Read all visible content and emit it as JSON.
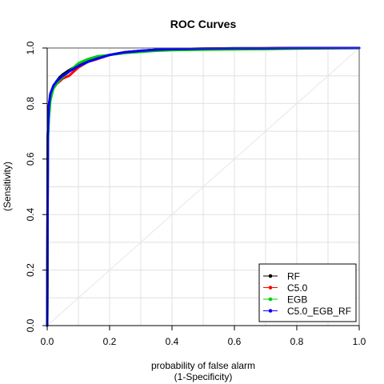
{
  "chart_data": {
    "type": "line",
    "title": "ROC Curves",
    "xlabel_line1": "probability of false alarm",
    "xlabel_line2": "(1-Specificity)",
    "ylabel_line1": "",
    "ylabel_line2": "(Sensitivity)",
    "xlim": [
      0,
      1
    ],
    "ylim": [
      0,
      1
    ],
    "x_ticks": [
      "0.0",
      "0.2",
      "0.4",
      "0.6",
      "0.8",
      "1.0"
    ],
    "y_ticks": [
      "0.0",
      "0.2",
      "0.4",
      "0.6",
      "0.8",
      "1.0"
    ],
    "grid": true,
    "diagonal": true,
    "legend_position": "bottom-right",
    "series": [
      {
        "name": "RF",
        "color": "#000000",
        "x": [
          0,
          0.002,
          0.005,
          0.01,
          0.02,
          0.03,
          0.04,
          0.05,
          0.07,
          0.1,
          0.13,
          0.16,
          0.2,
          0.25,
          0.3,
          0.35,
          0.4,
          0.5,
          0.6,
          0.7,
          0.8,
          0.9,
          1.0
        ],
        "y": [
          0,
          0.68,
          0.78,
          0.83,
          0.86,
          0.88,
          0.895,
          0.905,
          0.92,
          0.94,
          0.955,
          0.965,
          0.975,
          0.985,
          0.99,
          0.994,
          0.996,
          0.998,
          0.999,
          0.999,
          1.0,
          1.0,
          1.0
        ]
      },
      {
        "name": "C5.0",
        "color": "#ff0000",
        "x": [
          0,
          0.002,
          0.005,
          0.01,
          0.02,
          0.03,
          0.04,
          0.05,
          0.07,
          0.1,
          0.13,
          0.16,
          0.2,
          0.25,
          0.3,
          0.35,
          0.4,
          0.5,
          0.6,
          0.7,
          0.8,
          0.9,
          1.0
        ],
        "y": [
          0,
          0.67,
          0.77,
          0.82,
          0.855,
          0.87,
          0.88,
          0.89,
          0.9,
          0.93,
          0.95,
          0.96,
          0.975,
          0.985,
          0.99,
          0.994,
          0.996,
          0.997,
          0.998,
          0.999,
          1.0,
          1.0,
          1.0
        ]
      },
      {
        "name": "EGB",
        "color": "#00cd00",
        "x": [
          0,
          0.002,
          0.005,
          0.01,
          0.02,
          0.03,
          0.04,
          0.05,
          0.07,
          0.1,
          0.13,
          0.16,
          0.2,
          0.25,
          0.3,
          0.35,
          0.4,
          0.5,
          0.6,
          0.7,
          0.8,
          0.9,
          1.0
        ],
        "y": [
          0,
          0.66,
          0.74,
          0.81,
          0.855,
          0.87,
          0.885,
          0.895,
          0.915,
          0.945,
          0.96,
          0.97,
          0.975,
          0.982,
          0.986,
          0.99,
          0.992,
          0.994,
          0.995,
          0.996,
          0.998,
          0.999,
          1.0
        ]
      },
      {
        "name": "C5.0_EGB_RF",
        "color": "#0000ff",
        "x": [
          0,
          0.002,
          0.005,
          0.01,
          0.02,
          0.03,
          0.04,
          0.05,
          0.07,
          0.1,
          0.13,
          0.16,
          0.2,
          0.25,
          0.3,
          0.35,
          0.4,
          0.5,
          0.6,
          0.7,
          0.8,
          0.9,
          1.0
        ],
        "y": [
          0,
          0.69,
          0.79,
          0.835,
          0.865,
          0.88,
          0.89,
          0.9,
          0.915,
          0.935,
          0.95,
          0.962,
          0.975,
          0.985,
          0.99,
          0.994,
          0.996,
          0.998,
          0.999,
          0.999,
          1.0,
          1.0,
          1.0
        ]
      }
    ]
  }
}
